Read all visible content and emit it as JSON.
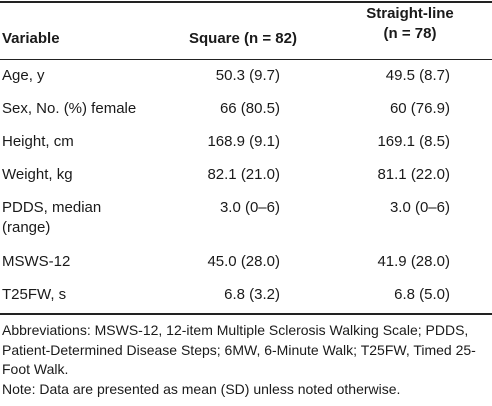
{
  "header": {
    "variable": "Variable",
    "square": "Square (n = 82)",
    "straight_line_1": "Straight-line",
    "straight_line_2": "(n = 78)"
  },
  "rows": [
    {
      "variable": "Age, y",
      "square": "50.3 (9.7)",
      "straight": "49.5 (8.7)"
    },
    {
      "variable": "Sex, No. (%) female",
      "square": "66 (80.5)",
      "straight": "60 (76.9)"
    },
    {
      "variable": "Height, cm",
      "square": "168.9 (9.1)",
      "straight": "169.1 (8.5)"
    },
    {
      "variable": "Weight, kg",
      "square": "82.1 (21.0)",
      "straight": "81.1 (22.0)"
    },
    {
      "variable_1": "PDDS, median",
      "variable_2": "(range)",
      "square": "3.0 (0–6)",
      "straight": "3.0 (0–6)"
    },
    {
      "variable": "MSWS-12",
      "square": "45.0 (28.0)",
      "straight": "41.9 (28.0)"
    },
    {
      "variable": "T25FW, s",
      "square": "6.8 (3.2)",
      "straight": "6.8 (5.0)"
    }
  ],
  "footnotes": {
    "abbreviations": "Abbreviations: MSWS-12, 12-item Multiple Sclerosis Walking Scale; PDDS, Patient-Determined Disease Steps; 6MW, 6-Minute Walk; T25FW, Timed 25-Foot Walk.",
    "note": "Note: Data are presented as mean (SD) unless noted otherwise."
  }
}
